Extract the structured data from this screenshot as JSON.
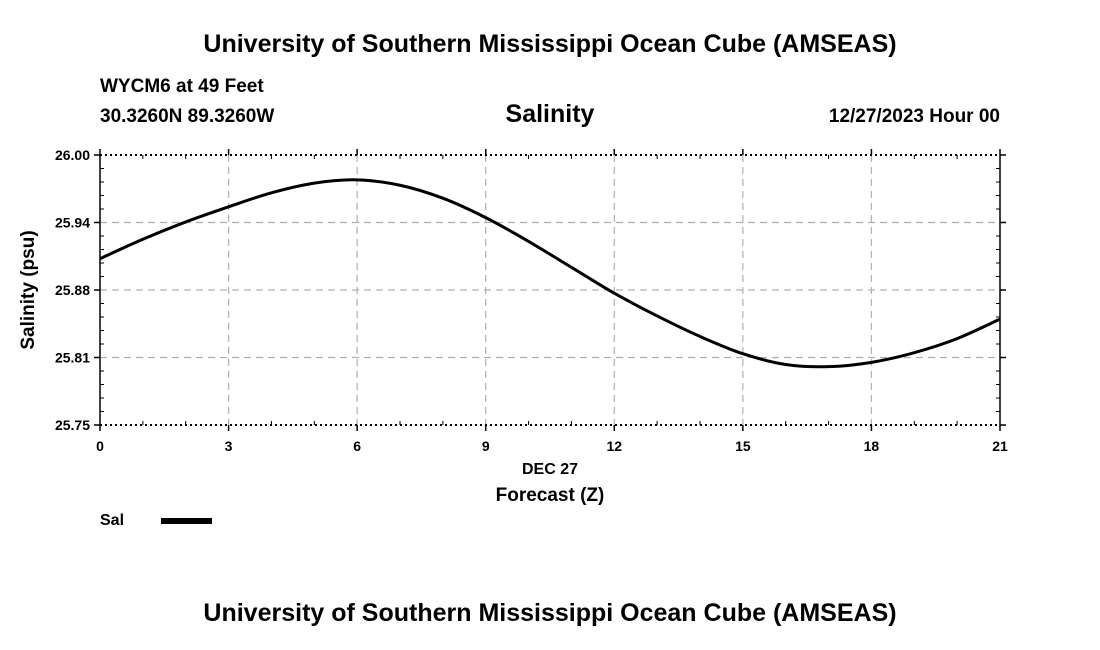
{
  "header": {
    "top_title": "University of Southern Mississippi Ocean Cube (AMSEAS)",
    "station": "WYCM6 at 49 Feet",
    "coords": "30.3260N  89.3260W",
    "chart_title": "Salinity",
    "datetime": "12/27/2023 Hour 00",
    "bottom_title": "University of Southern Mississippi Ocean Cube (AMSEAS)"
  },
  "colors": {
    "line": "#000000",
    "grid": "#b0b0b0"
  },
  "chart_data": {
    "type": "line",
    "title": "Salinity",
    "xlabel": "Forecast (Z)",
    "xsublabel": "DEC 27",
    "ylabel": "Salinity (psu)",
    "xlim": [
      0,
      21
    ],
    "ylim": [
      25.75,
      26.0
    ],
    "xticks": [
      0,
      3,
      6,
      9,
      12,
      15,
      18,
      21
    ],
    "xtick_labels": [
      "0",
      "3",
      "6",
      "9",
      "12",
      "15",
      "18",
      "21"
    ],
    "yticks": [
      26.0,
      25.9375,
      25.875,
      25.8125,
      25.75
    ],
    "ytick_labels": [
      "26.00",
      "25.94",
      "25.88",
      "25.81",
      "25.75"
    ],
    "grid": true,
    "series": [
      {
        "name": "Sal",
        "x": [
          0,
          1,
          2,
          3,
          4,
          5,
          6,
          7,
          8,
          9,
          10,
          11,
          12,
          13,
          14,
          15,
          16,
          17,
          18,
          19,
          20,
          21
        ],
        "values": [
          25.904,
          25.922,
          25.938,
          25.952,
          25.965,
          25.974,
          25.977,
          25.972,
          25.96,
          25.942,
          25.92,
          25.896,
          25.872,
          25.851,
          25.832,
          25.816,
          25.806,
          25.804,
          25.808,
          25.817,
          25.83,
          25.848
        ]
      }
    ],
    "legend": {
      "position": "bottom-left",
      "label": "Sal"
    }
  }
}
